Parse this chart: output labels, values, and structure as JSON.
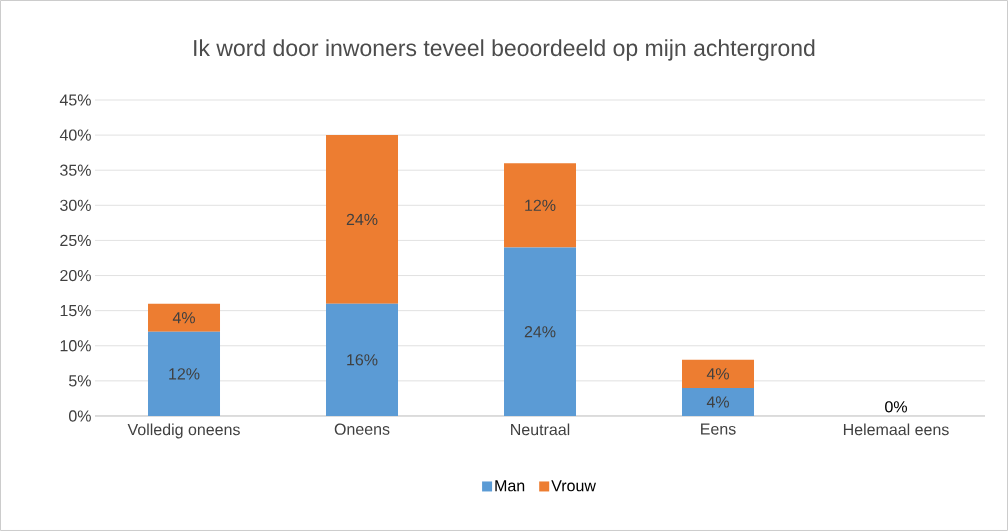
{
  "chart_data": {
    "type": "bar",
    "stacked": true,
    "title": "Ik word door inwoners teveel beoordeeld op mijn achtergrond",
    "categories": [
      "Volledig oneens",
      "Oneens",
      "Neutraal",
      "Eens",
      "Helemaal eens"
    ],
    "series": [
      {
        "name": "Man",
        "color": "#5b9bd5",
        "values": [
          12,
          16,
          24,
          4,
          0
        ],
        "value_labels": [
          "12%",
          "16%",
          "24%",
          "4%",
          "0%"
        ]
      },
      {
        "name": "Vrouw",
        "color": "#ed7d31",
        "values": [
          4,
          24,
          12,
          4,
          0
        ],
        "value_labels": [
          "4%",
          "24%",
          "12%",
          "4%",
          null
        ]
      }
    ],
    "ylim": [
      0,
      45
    ],
    "yticks": [
      {
        "value": 0,
        "label": "0%"
      },
      {
        "value": 5,
        "label": "5%"
      },
      {
        "value": 10,
        "label": "10%"
      },
      {
        "value": 15,
        "label": "15%"
      },
      {
        "value": 20,
        "label": "20%"
      },
      {
        "value": 25,
        "label": "25%"
      },
      {
        "value": 30,
        "label": "30%"
      },
      {
        "value": 35,
        "label": "35%"
      },
      {
        "value": 40,
        "label": "40%"
      },
      {
        "value": 45,
        "label": "45%"
      }
    ],
    "grid": "y",
    "legend": "bottom"
  }
}
